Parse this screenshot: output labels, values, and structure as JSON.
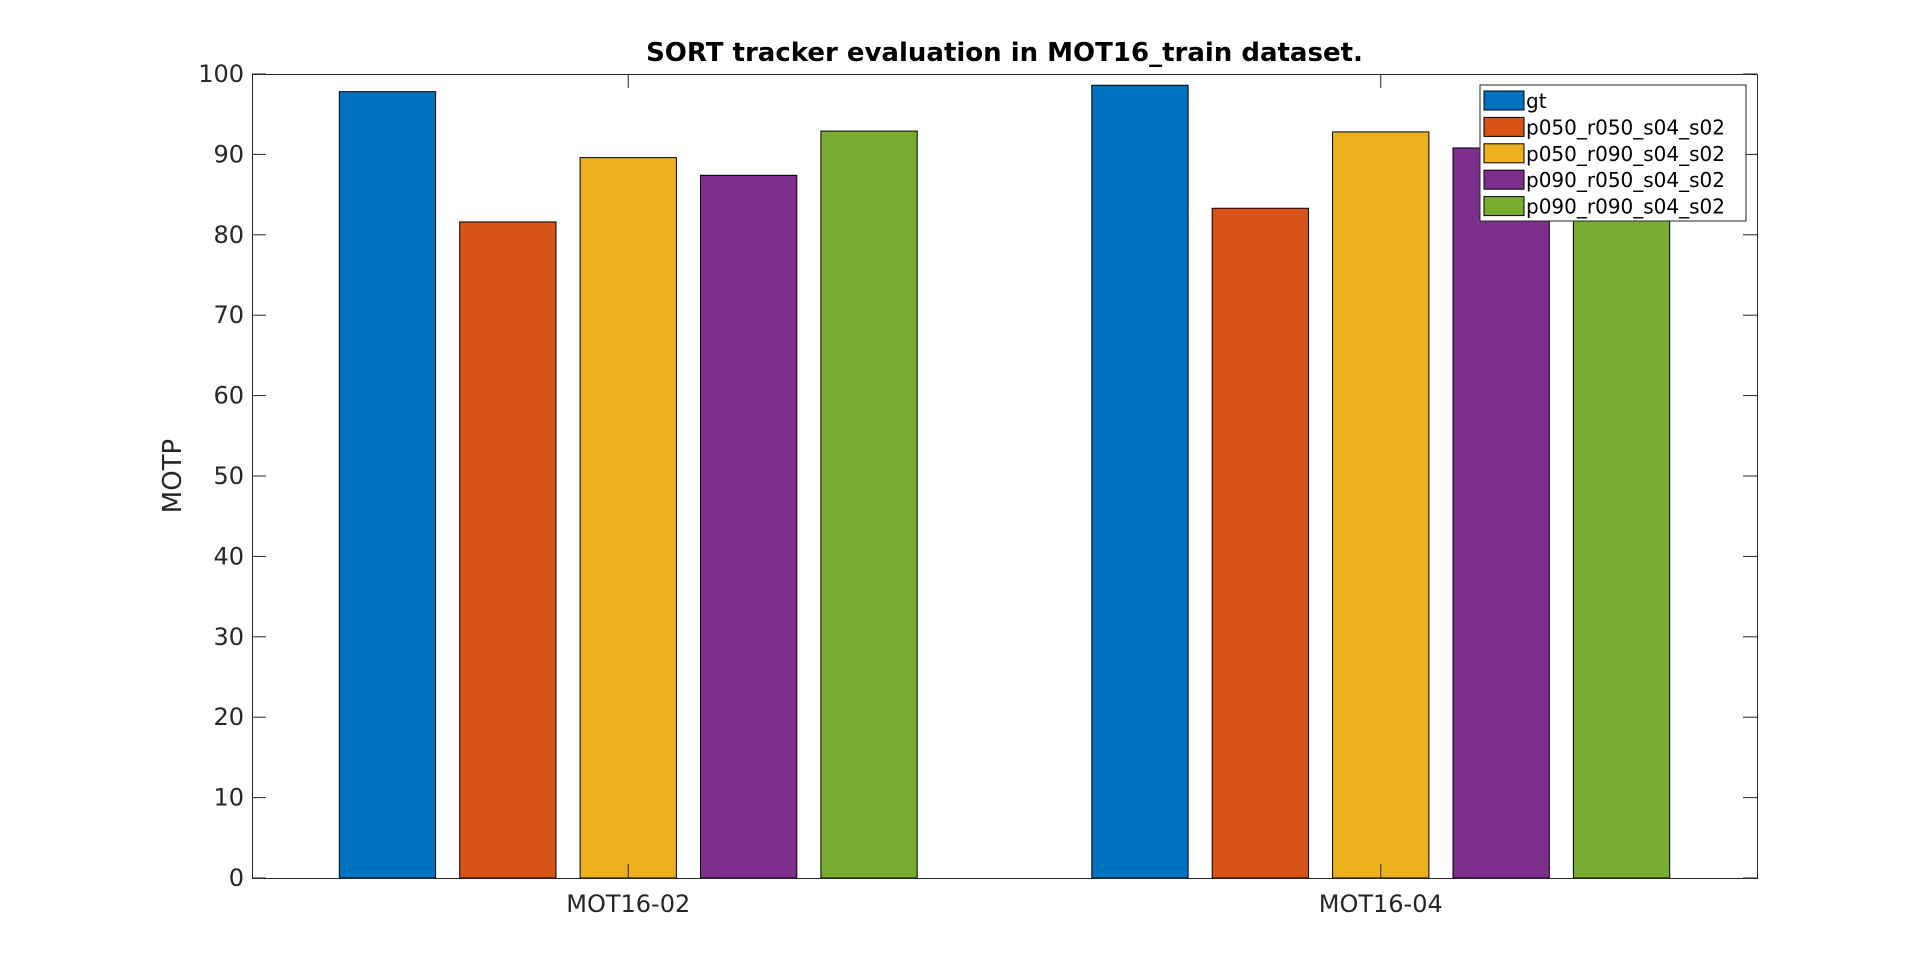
{
  "chart_data": {
    "type": "bar",
    "title": "SORT tracker evaluation in MOT16_train dataset.",
    "xlabel": "",
    "ylabel": "MOTP",
    "ylim": [
      0,
      100
    ],
    "yticks": [
      0,
      10,
      20,
      30,
      40,
      50,
      60,
      70,
      80,
      90,
      100
    ],
    "categories": [
      "MOT16-02",
      "MOT16-04"
    ],
    "grid": false,
    "legend_position": "top-right",
    "series": [
      {
        "name": "gt",
        "color": "#0072BD",
        "values": [
          97.8,
          98.6
        ]
      },
      {
        "name": "p050_r050_s04_s02",
        "color": "#D95319",
        "values": [
          81.6,
          83.3
        ]
      },
      {
        "name": "p050_r090_s04_s02",
        "color": "#EDB120",
        "values": [
          89.6,
          92.8
        ]
      },
      {
        "name": "p090_r050_s04_s02",
        "color": "#7E2F8E",
        "values": [
          87.4,
          90.8
        ]
      },
      {
        "name": "p090_r090_s04_s02",
        "color": "#77AC30",
        "values": [
          92.9,
          94.6
        ]
      }
    ]
  }
}
